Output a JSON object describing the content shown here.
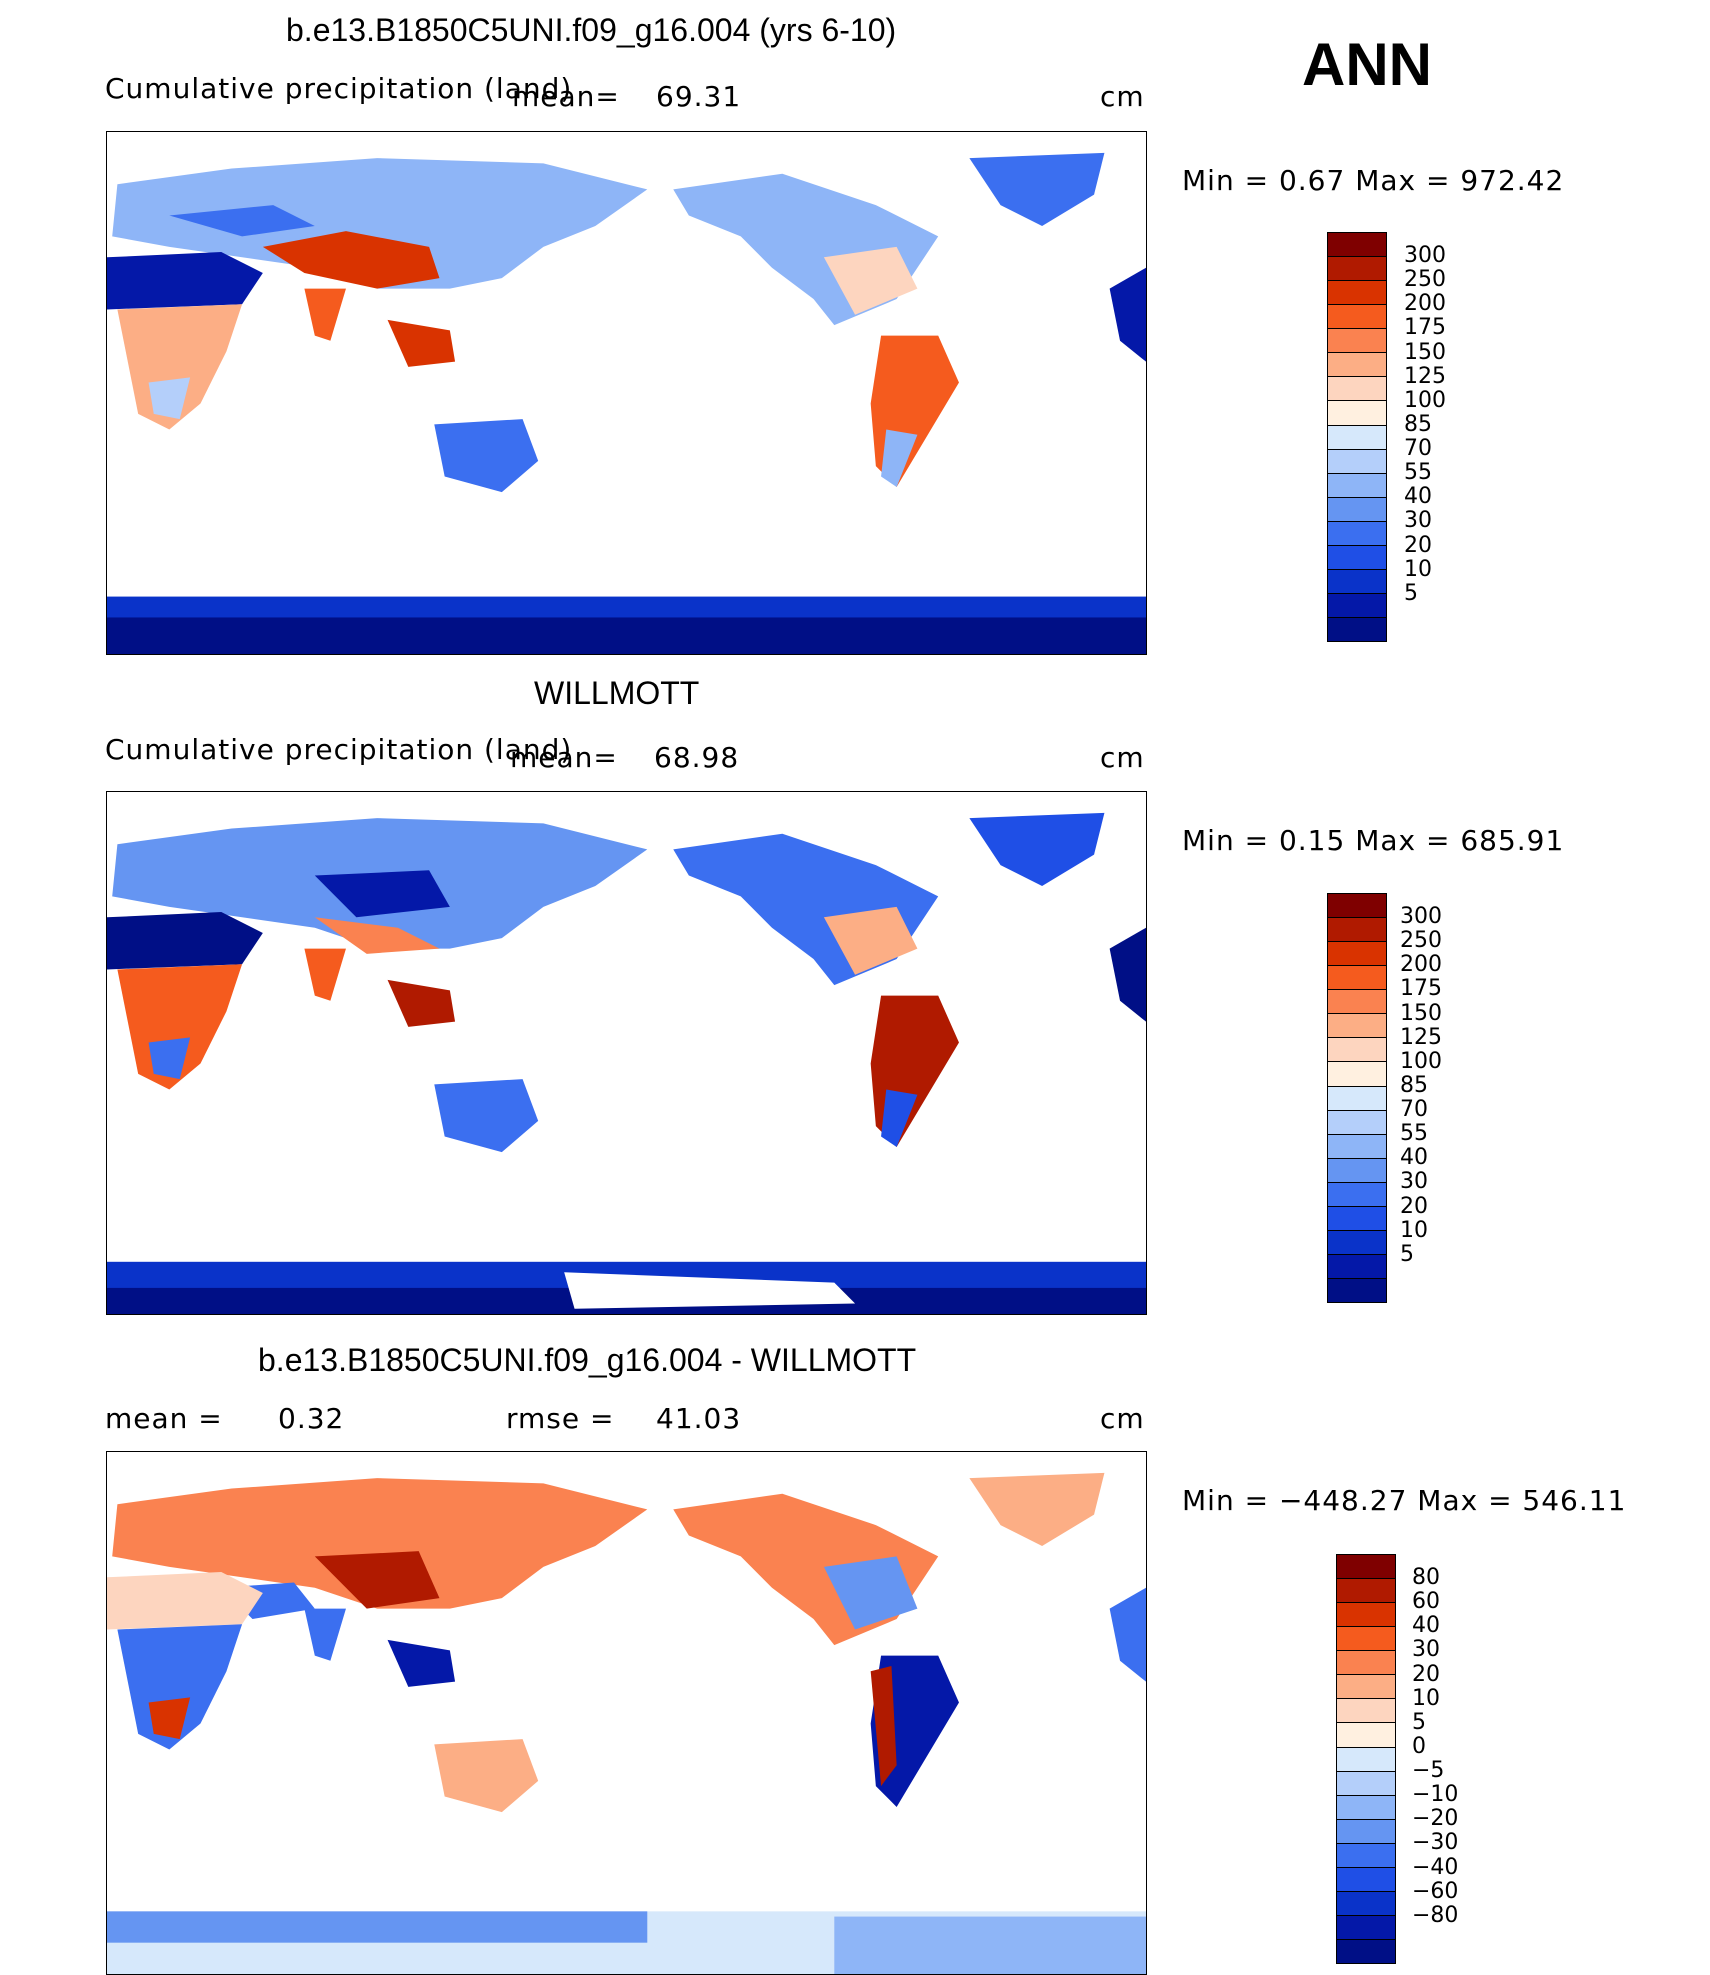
{
  "season": "ANN",
  "panels": [
    {
      "title": "b.e13.B1850C5UNI.f09_g16.004 (yrs 6-10)",
      "variable": "Cumulative precipitation (land)",
      "stat1_label": "mean=",
      "stat1_value": "69.31",
      "units": "cm",
      "minmax": "Min =    0.67  Max  =  972.42",
      "legend_colors": [
        "#7f0000",
        "#b01a00",
        "#d93300",
        "#f55b1e",
        "#fa8250",
        "#fcae85",
        "#fdd5bf",
        "#fff0e0",
        "#d6e8fb",
        "#b4cffa",
        "#8eb5f7",
        "#6595f2",
        "#3b6ff0",
        "#1f4fe6",
        "#0a33c9",
        "#0418a8",
        "#000f86"
      ],
      "legend_labels": [
        "300",
        "250",
        "200",
        "175",
        "150",
        "125",
        "100",
        "85",
        "70",
        "55",
        "40",
        "30",
        "20",
        "10",
        "5"
      ]
    },
    {
      "title": "WILLMOTT",
      "variable": "Cumulative precipitation (land)",
      "stat1_label": "mean=",
      "stat1_value": "68.98",
      "units": "cm",
      "minmax": "Min =    0.15  Max  =  685.91",
      "legend_colors": [
        "#7f0000",
        "#b01a00",
        "#d93300",
        "#f55b1e",
        "#fa8250",
        "#fcae85",
        "#fdd5bf",
        "#fff0e0",
        "#d6e8fb",
        "#b4cffa",
        "#8eb5f7",
        "#6595f2",
        "#3b6ff0",
        "#1f4fe6",
        "#0a33c9",
        "#0418a8",
        "#000f86"
      ],
      "legend_labels": [
        "300",
        "250",
        "200",
        "175",
        "150",
        "125",
        "100",
        "85",
        "70",
        "55",
        "40",
        "30",
        "20",
        "10",
        "5"
      ]
    },
    {
      "title": "b.e13.B1850C5UNI.f09_g16.004 - WILLMOTT",
      "stat1_label": "mean =",
      "stat1_value": "0.32",
      "stat2_label": "rmse =",
      "stat2_value": "41.03",
      "units": "cm",
      "minmax": "Min = −448.27  Max  =  546.11",
      "legend_colors": [
        "#7f0000",
        "#b01a00",
        "#d93300",
        "#f55b1e",
        "#fa8250",
        "#fcae85",
        "#fdd5bf",
        "#fff0e0",
        "#d6e8fb",
        "#b4cffa",
        "#8eb5f7",
        "#6595f2",
        "#3b6ff0",
        "#1f4fe6",
        "#0a33c9",
        "#0418a8",
        "#000f86"
      ],
      "legend_labels": [
        "80",
        "60",
        "40",
        "30",
        "20",
        "10",
        "5",
        "0",
        "−5",
        "−10",
        "−20",
        "−30",
        "−40",
        "−60",
        "−80"
      ]
    }
  ]
}
